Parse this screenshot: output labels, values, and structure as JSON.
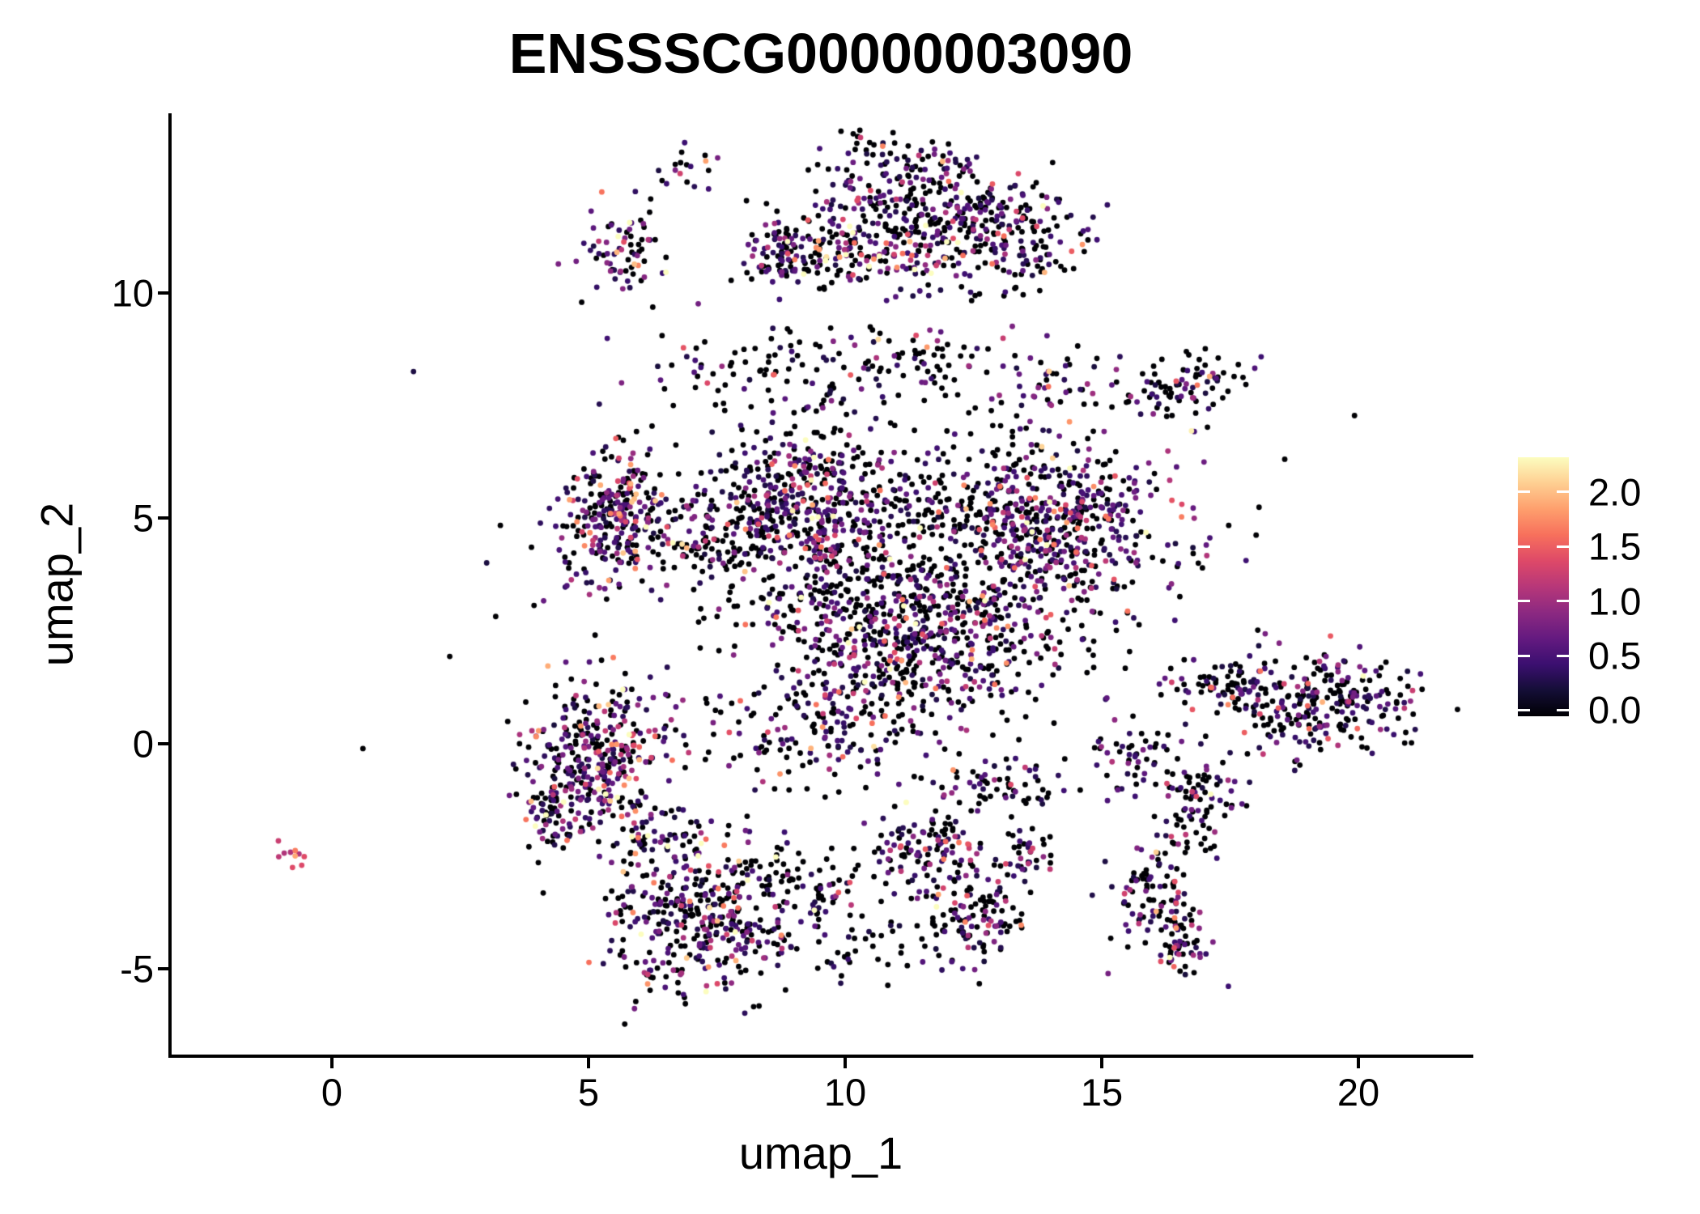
{
  "chart_data": {
    "type": "scatter",
    "title": "ENSSSCG00000003090",
    "xlabel": "umap_1",
    "ylabel": "umap_2",
    "xlim": [
      -3.15,
      22.2
    ],
    "ylim": [
      -6.93,
      13.99
    ],
    "grid": false,
    "x_ticks": [
      0,
      5,
      10,
      15,
      20
    ],
    "x_tick_labels": [
      "0",
      "5",
      "10",
      "15",
      "20"
    ],
    "y_ticks": [
      10,
      5,
      0,
      -5
    ],
    "y_tick_labels": [
      "10",
      "5",
      "0",
      "-5"
    ],
    "legend_position": "right",
    "colorbar": {
      "vmin": 0.0,
      "vmax": 2.32,
      "tick_values": [
        2.0,
        1.5,
        1.0,
        0.5,
        0.0
      ],
      "tick_labels": [
        "2.0",
        "1.5",
        "1.0",
        "0.5",
        "0.0"
      ],
      "colormap": "magma",
      "stops": [
        [
          0.0,
          "#000004"
        ],
        [
          0.1,
          "#140e36"
        ],
        [
          0.2,
          "#3b0f70"
        ],
        [
          0.3,
          "#641a80"
        ],
        [
          0.4,
          "#8c2981"
        ],
        [
          0.5,
          "#b73779"
        ],
        [
          0.6,
          "#de4968"
        ],
        [
          0.7,
          "#f7705c"
        ],
        [
          0.8,
          "#fe9f6d"
        ],
        [
          0.9,
          "#fecf92"
        ],
        [
          1.0,
          "#fcfdbf"
        ]
      ]
    },
    "point_style": {
      "radius_px": 3.4,
      "zero_color": "#000004",
      "positive_floor": 0.25
    },
    "render_seed": 42,
    "clusters": [
      {
        "name": "top-band-left",
        "cx": 9.0,
        "cy": 10.9,
        "sx": 0.55,
        "sy": 0.35,
        "n": 120,
        "p0": 0.45,
        "lam": 0.5
      },
      {
        "name": "top-core",
        "cx": 11.0,
        "cy": 11.6,
        "sx": 1.1,
        "sy": 0.75,
        "n": 330,
        "p0": 0.48,
        "lam": 0.5
      },
      {
        "name": "top-right-lobe",
        "cx": 13.3,
        "cy": 11.2,
        "sx": 0.8,
        "sy": 0.6,
        "n": 160,
        "p0": 0.55,
        "lam": 0.45
      },
      {
        "name": "top-orange-streak",
        "cx": 10.9,
        "cy": 10.7,
        "sx": 0.5,
        "sy": 0.12,
        "n": 22,
        "p0": 0.05,
        "lam": 0.9,
        "base": 0.5,
        "rot": -12
      },
      {
        "name": "top-upper-wisps",
        "cx": 11.6,
        "cy": 12.9,
        "sx": 0.7,
        "sy": 0.3,
        "n": 45,
        "p0": 0.5,
        "lam": 0.45
      },
      {
        "name": "top-tip",
        "cx": 10.4,
        "cy": 13.3,
        "sx": 0.25,
        "sy": 0.25,
        "n": 14,
        "p0": 0.55,
        "lam": 0.4
      },
      {
        "name": "top-left-satellite",
        "cx": 5.6,
        "cy": 10.8,
        "sx": 0.4,
        "sy": 0.55,
        "n": 75,
        "p0": 0.42,
        "lam": 0.55
      },
      {
        "name": "top-small-arc",
        "cx": 7.0,
        "cy": 12.9,
        "sx": 0.3,
        "sy": 0.35,
        "n": 18,
        "p0": 0.5,
        "lam": 0.5
      },
      {
        "name": "mid-band-left",
        "cx": 8.5,
        "cy": 8.2,
        "sx": 1.2,
        "sy": 0.55,
        "n": 90,
        "p0": 0.62,
        "lam": 0.35
      },
      {
        "name": "mid-band-center",
        "cx": 11.3,
        "cy": 8.5,
        "sx": 0.9,
        "sy": 0.5,
        "n": 70,
        "p0": 0.6,
        "lam": 0.4
      },
      {
        "name": "mid-band-right",
        "cx": 14.2,
        "cy": 8.0,
        "sx": 0.7,
        "sy": 0.5,
        "n": 50,
        "p0": 0.55,
        "lam": 0.45
      },
      {
        "name": "right-satellite",
        "cx": 16.5,
        "cy": 7.8,
        "sx": 0.55,
        "sy": 0.35,
        "n": 60,
        "p0": 0.5,
        "lam": 0.5
      },
      {
        "name": "right-satellite-streak",
        "cx": 17.3,
        "cy": 8.3,
        "sx": 0.5,
        "sy": 0.15,
        "n": 20,
        "p0": 0.6,
        "lam": 0.4,
        "rot": 20
      },
      {
        "name": "center-left-lobe",
        "cx": 9.2,
        "cy": 5.2,
        "sx": 1.0,
        "sy": 0.85,
        "n": 480,
        "p0": 0.4,
        "lam": 0.55
      },
      {
        "name": "center-right-lobe",
        "cx": 14.0,
        "cy": 4.8,
        "sx": 1.15,
        "sy": 0.9,
        "n": 520,
        "p0": 0.42,
        "lam": 0.55
      },
      {
        "name": "center-bottom-lobe",
        "cx": 11.2,
        "cy": 2.3,
        "sx": 1.5,
        "sy": 1.05,
        "n": 600,
        "p0": 0.45,
        "lam": 0.55
      },
      {
        "name": "center-filler",
        "cx": 11.5,
        "cy": 4.5,
        "sx": 2.3,
        "sy": 1.6,
        "n": 330,
        "p0": 0.72,
        "lam": 0.3
      },
      {
        "name": "center-bottom-tail",
        "cx": 9.3,
        "cy": 0.3,
        "sx": 0.9,
        "sy": 0.6,
        "n": 120,
        "p0": 0.5,
        "lam": 0.5
      },
      {
        "name": "left-mid-cluster",
        "cx": 5.6,
        "cy": 5.0,
        "sx": 0.62,
        "sy": 0.7,
        "n": 300,
        "p0": 0.42,
        "lam": 0.55
      },
      {
        "name": "left-mid-connector",
        "cx": 7.3,
        "cy": 4.4,
        "sx": 0.7,
        "sy": 0.45,
        "n": 60,
        "p0": 0.65,
        "lam": 0.3
      },
      {
        "name": "left-lower-cluster",
        "cx": 5.2,
        "cy": -0.2,
        "sx": 0.7,
        "sy": 0.85,
        "n": 340,
        "p0": 0.4,
        "lam": 0.6
      },
      {
        "name": "left-lower-spur",
        "cx": 4.3,
        "cy": -1.6,
        "sx": 0.35,
        "sy": 0.5,
        "n": 60,
        "p0": 0.45,
        "lam": 0.5
      },
      {
        "name": "bottom-center-cluster",
        "cx": 7.3,
        "cy": -3.9,
        "sx": 0.95,
        "sy": 0.85,
        "n": 380,
        "p0": 0.45,
        "lam": 0.55
      },
      {
        "name": "bottom-center-neck",
        "cx": 6.4,
        "cy": -2.2,
        "sx": 0.5,
        "sy": 0.5,
        "n": 70,
        "p0": 0.5,
        "lam": 0.5
      },
      {
        "name": "bottom-center-wing",
        "cx": 9.2,
        "cy": -3.1,
        "sx": 0.6,
        "sy": 0.4,
        "n": 70,
        "p0": 0.55,
        "lam": 0.45
      },
      {
        "name": "bottom-mid-blob-a",
        "cx": 11.6,
        "cy": -2.3,
        "sx": 0.55,
        "sy": 0.6,
        "n": 130,
        "p0": 0.5,
        "lam": 0.5
      },
      {
        "name": "bottom-mid-blob-b",
        "cx": 12.5,
        "cy": -4.0,
        "sx": 0.5,
        "sy": 0.55,
        "n": 110,
        "p0": 0.48,
        "lam": 0.55
      },
      {
        "name": "bottom-mid-streak",
        "cx": 12.9,
        "cy": -0.9,
        "sx": 0.5,
        "sy": 0.3,
        "n": 60,
        "p0": 0.55,
        "lam": 0.4
      },
      {
        "name": "bottom-mid-dot",
        "cx": 13.4,
        "cy": -2.5,
        "sx": 0.3,
        "sy": 0.3,
        "n": 40,
        "p0": 0.5,
        "lam": 0.5
      },
      {
        "name": "bottom-stray",
        "cx": 10.3,
        "cy": -4.6,
        "sx": 0.7,
        "sy": 0.4,
        "n": 35,
        "p0": 0.65,
        "lam": 0.3
      },
      {
        "name": "right-cluster",
        "cx": 19.2,
        "cy": 0.9,
        "sx": 1.05,
        "sy": 0.55,
        "n": 270,
        "p0": 0.58,
        "lam": 0.4
      },
      {
        "name": "right-cluster-tail",
        "cx": 17.3,
        "cy": 1.3,
        "sx": 0.6,
        "sy": 0.3,
        "n": 60,
        "p0": 0.6,
        "lam": 0.35
      },
      {
        "name": "right-hook-upper",
        "cx": 16.8,
        "cy": -1.3,
        "sx": 0.45,
        "sy": 0.6,
        "n": 90,
        "p0": 0.5,
        "lam": 0.5
      },
      {
        "name": "right-hook-lower",
        "cx": 16.1,
        "cy": -3.4,
        "sx": 0.45,
        "sy": 0.65,
        "n": 110,
        "p0": 0.45,
        "lam": 0.6
      },
      {
        "name": "right-hook-neck",
        "cx": 15.6,
        "cy": -0.3,
        "sx": 0.5,
        "sy": 0.4,
        "n": 50,
        "p0": 0.6,
        "lam": 0.4
      },
      {
        "name": "right-hook-tip",
        "cx": 16.6,
        "cy": -4.6,
        "sx": 0.3,
        "sy": 0.3,
        "n": 35,
        "p0": 0.45,
        "lam": 0.6
      },
      {
        "name": "isolated-left-dots",
        "cx": -0.72,
        "cy": -2.6,
        "sx": 0.22,
        "sy": 0.1,
        "n": 10,
        "p0": 0.0,
        "lam": 0.5,
        "base": 0.8,
        "rot": -35
      },
      {
        "name": "background-sparse",
        "cx": 11.0,
        "cy": 3.0,
        "sx": 3.2,
        "sy": 2.2,
        "n": 160,
        "p0": 0.8,
        "lam": 0.25
      }
    ]
  }
}
